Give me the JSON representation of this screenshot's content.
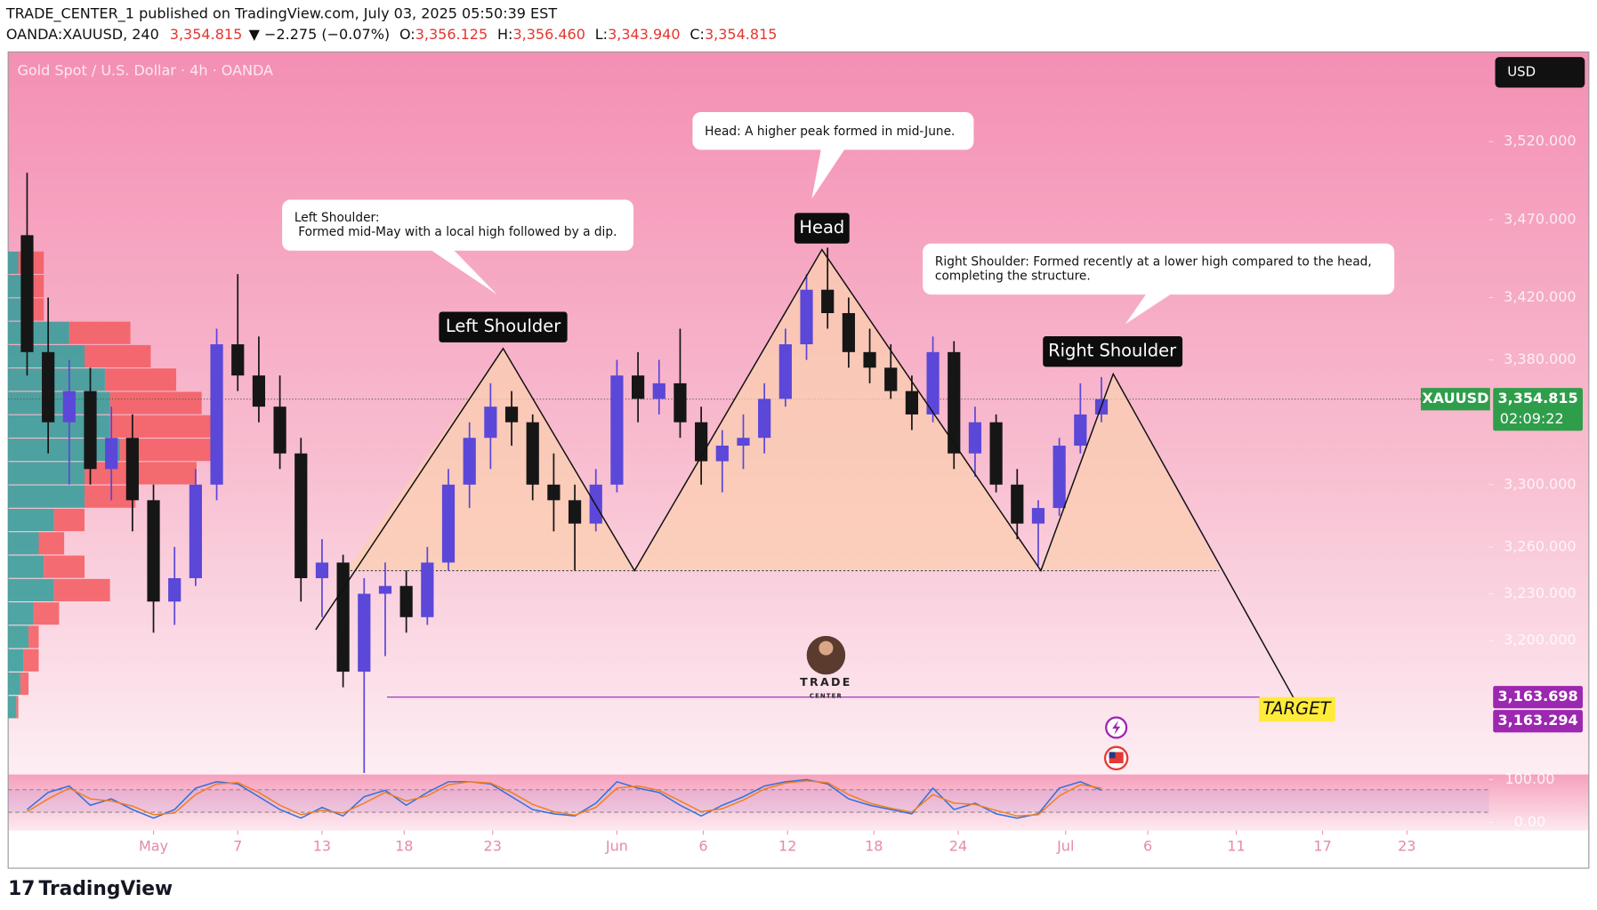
{
  "header": {
    "line1": "TRADE_CENTER_1 published on TradingView.com, July 03, 2025 05:50:39 EST",
    "symbol": "OANDA:XAUUSD, 240",
    "last": "3,354.815",
    "change": "▼ −2.275 (−0.07%)",
    "o_label": "O:",
    "o": "3,356.125",
    "h_label": "H:",
    "h": "3,356.460",
    "l_label": "L:",
    "l": "3,343.940",
    "c_label": "C:",
    "c": "3,354.815"
  },
  "footer": {
    "brand": "TradingView"
  },
  "chart_data": {
    "type": "candlestick",
    "title": "Gold Spot / U.S. Dollar · 4h · OANDA",
    "currency": "USD",
    "x": [
      -6,
      -5,
      -4,
      -3,
      -2,
      -1,
      0,
      1,
      2,
      3,
      4,
      5,
      6,
      7,
      8,
      9,
      10,
      11,
      12,
      13,
      14,
      15,
      16,
      17,
      18,
      19,
      20,
      21,
      22,
      23,
      24,
      25,
      26,
      27,
      28,
      29,
      30,
      31,
      32,
      33,
      34,
      35,
      36,
      37,
      38,
      39,
      40,
      41,
      42,
      43,
      44,
      45
    ],
    "open": [
      3460,
      3385,
      3340,
      3360,
      3310,
      3330,
      3290,
      3225,
      3240,
      3300,
      3390,
      3370,
      3350,
      3320,
      3240,
      3250,
      3180,
      3230,
      3235,
      3215,
      3250,
      3300,
      3330,
      3350,
      3340,
      3300,
      3290,
      3275,
      3300,
      3370,
      3355,
      3365,
      3340,
      3315,
      3325,
      3330,
      3355,
      3390,
      3425,
      3410,
      3385,
      3375,
      3360,
      3345,
      3385,
      3320,
      3340,
      3300,
      3275,
      3285,
      3325,
      3345
    ],
    "high": [
      3500,
      3420,
      3380,
      3375,
      3350,
      3345,
      3300,
      3260,
      3310,
      3400,
      3435,
      3395,
      3370,
      3330,
      3265,
      3255,
      3240,
      3250,
      3245,
      3260,
      3310,
      3340,
      3365,
      3360,
      3345,
      3320,
      3300,
      3310,
      3380,
      3385,
      3380,
      3400,
      3350,
      3335,
      3345,
      3365,
      3400,
      3435,
      3452,
      3420,
      3400,
      3390,
      3370,
      3395,
      3392,
      3350,
      3345,
      3310,
      3290,
      3330,
      3365,
      3369
    ],
    "low": [
      3370,
      3320,
      3300,
      3300,
      3290,
      3270,
      3205,
      3210,
      3235,
      3290,
      3360,
      3340,
      3310,
      3225,
      3215,
      3170,
      3115,
      3190,
      3205,
      3210,
      3245,
      3285,
      3310,
      3325,
      3290,
      3270,
      3245,
      3270,
      3295,
      3340,
      3345,
      3330,
      3300,
      3295,
      3310,
      3320,
      3350,
      3380,
      3400,
      3375,
      3365,
      3355,
      3335,
      3340,
      3310,
      3305,
      3295,
      3265,
      3248,
      3280,
      3320,
      3340
    ],
    "close": [
      3385,
      3340,
      3360,
      3310,
      3330,
      3290,
      3225,
      3240,
      3300,
      3390,
      3370,
      3350,
      3320,
      3240,
      3250,
      3180,
      3230,
      3235,
      3215,
      3250,
      3300,
      3330,
      3350,
      3340,
      3300,
      3290,
      3275,
      3300,
      3370,
      3355,
      3365,
      3340,
      3315,
      3325,
      3330,
      3355,
      3390,
      3425,
      3410,
      3385,
      3375,
      3360,
      3345,
      3385,
      3320,
      3340,
      3300,
      3275,
      3285,
      3325,
      3345,
      3354.815
    ],
    "up_color": "#5b47d8",
    "down_color": "#161616",
    "xlim": [
      -6.9,
      63.4
    ],
    "xticks": [
      {
        "value": 0,
        "label": "May"
      },
      {
        "value": 4,
        "label": "7"
      },
      {
        "value": 8,
        "label": "13"
      },
      {
        "value": 11.9,
        "label": "18"
      },
      {
        "value": 16.1,
        "label": "23"
      },
      {
        "value": 22,
        "label": "Jun"
      },
      {
        "value": 26.1,
        "label": "6"
      },
      {
        "value": 30.1,
        "label": "12"
      },
      {
        "value": 34.2,
        "label": "18"
      },
      {
        "value": 38.2,
        "label": "24"
      },
      {
        "value": 43.3,
        "label": "Jul"
      },
      {
        "value": 47.2,
        "label": "6"
      },
      {
        "value": 51.4,
        "label": "11"
      },
      {
        "value": 55.5,
        "label": "17"
      },
      {
        "value": 59.5,
        "label": "23"
      }
    ],
    "ylim": [
      3115.4,
      3577.5
    ],
    "yticks": [
      {
        "value": 3520,
        "label": "3,520.000"
      },
      {
        "value": 3470,
        "label": "3,470.000"
      },
      {
        "value": 3420,
        "label": "3,420.000"
      },
      {
        "value": 3380,
        "label": "3,380.000"
      },
      {
        "value": 3300,
        "label": "3,300.000"
      },
      {
        "value": 3260,
        "label": "3,260.000"
      },
      {
        "value": 3230,
        "label": "3,230.000"
      },
      {
        "value": 3200,
        "label": "3,200.000"
      }
    ],
    "last_price": {
      "symbol": "XAUUSD",
      "value": 3354.815,
      "label": "3,354.815",
      "countdown": "02:09:22",
      "color": "#2e9e4a"
    },
    "target": {
      "label": "TARGET",
      "prices": [
        {
          "value": 3163.698,
          "label": "3,163.698"
        },
        {
          "value": 3163.294,
          "label": "3,163.294"
        }
      ],
      "color": "#9c27b0"
    },
    "volume_profile": {
      "levels": [
        3442,
        3427,
        3412,
        3397,
        3382,
        3367,
        3352,
        3337,
        3322,
        3307,
        3292,
        3277,
        3262,
        3247,
        3232,
        3217,
        3202,
        3187,
        3172,
        3157
      ],
      "up": [
        10,
        15,
        15,
        60,
        75,
        95,
        100,
        100,
        110,
        75,
        75,
        45,
        30,
        35,
        45,
        25,
        20,
        15,
        12,
        8
      ],
      "down": [
        25,
        20,
        20,
        60,
        65,
        70,
        90,
        105,
        100,
        110,
        50,
        30,
        25,
        40,
        55,
        25,
        10,
        15,
        8,
        2
      ],
      "up_color": "#2f9c98",
      "down_color": "#f25b5e"
    },
    "oscillator": {
      "ylim": [
        -19,
        112
      ],
      "yticks": [
        {
          "value": 100,
          "label": "100.00"
        },
        {
          "value": 0,
          "label": "0.00"
        }
      ],
      "series": [
        {
          "color": "#2f6fe0",
          "values": [
            30,
            70,
            85,
            40,
            55,
            30,
            10,
            30,
            80,
            95,
            90,
            60,
            30,
            10,
            35,
            15,
            60,
            75,
            40,
            70,
            95,
            95,
            90,
            60,
            30,
            20,
            15,
            45,
            95,
            80,
            70,
            40,
            15,
            40,
            60,
            85,
            95,
            100,
            90,
            55,
            40,
            30,
            20,
            80,
            30,
            45,
            20,
            10,
            20,
            80,
            95,
            75
          ]
        },
        {
          "color": "#f07f1e",
          "values": [
            25,
            55,
            80,
            55,
            50,
            38,
            18,
            22,
            65,
            90,
            93,
            70,
            40,
            18,
            28,
            22,
            45,
            70,
            50,
            62,
            88,
            95,
            92,
            70,
            42,
            25,
            17,
            35,
            80,
            85,
            75,
            50,
            25,
            32,
            52,
            78,
            92,
            97,
            93,
            65,
            45,
            33,
            24,
            65,
            45,
            42,
            28,
            15,
            18,
            62,
            88,
            80
          ]
        }
      ]
    },
    "annotations": {
      "left_callout": [
        "Left Shoulder:",
        " Formed mid-May with a local high followed by a dip."
      ],
      "head_callout": [
        "Head: A higher peak formed in mid-June."
      ],
      "right_callout": [
        "Right Shoulder: Formed recently at a lower high compared to the head,",
        "completing the structure."
      ],
      "left_label": "Left Shoulder",
      "head_label": "Head",
      "right_label": "Right Shoulder",
      "logo_top": "TRADE",
      "logo_bottom": "CENTER"
    }
  }
}
